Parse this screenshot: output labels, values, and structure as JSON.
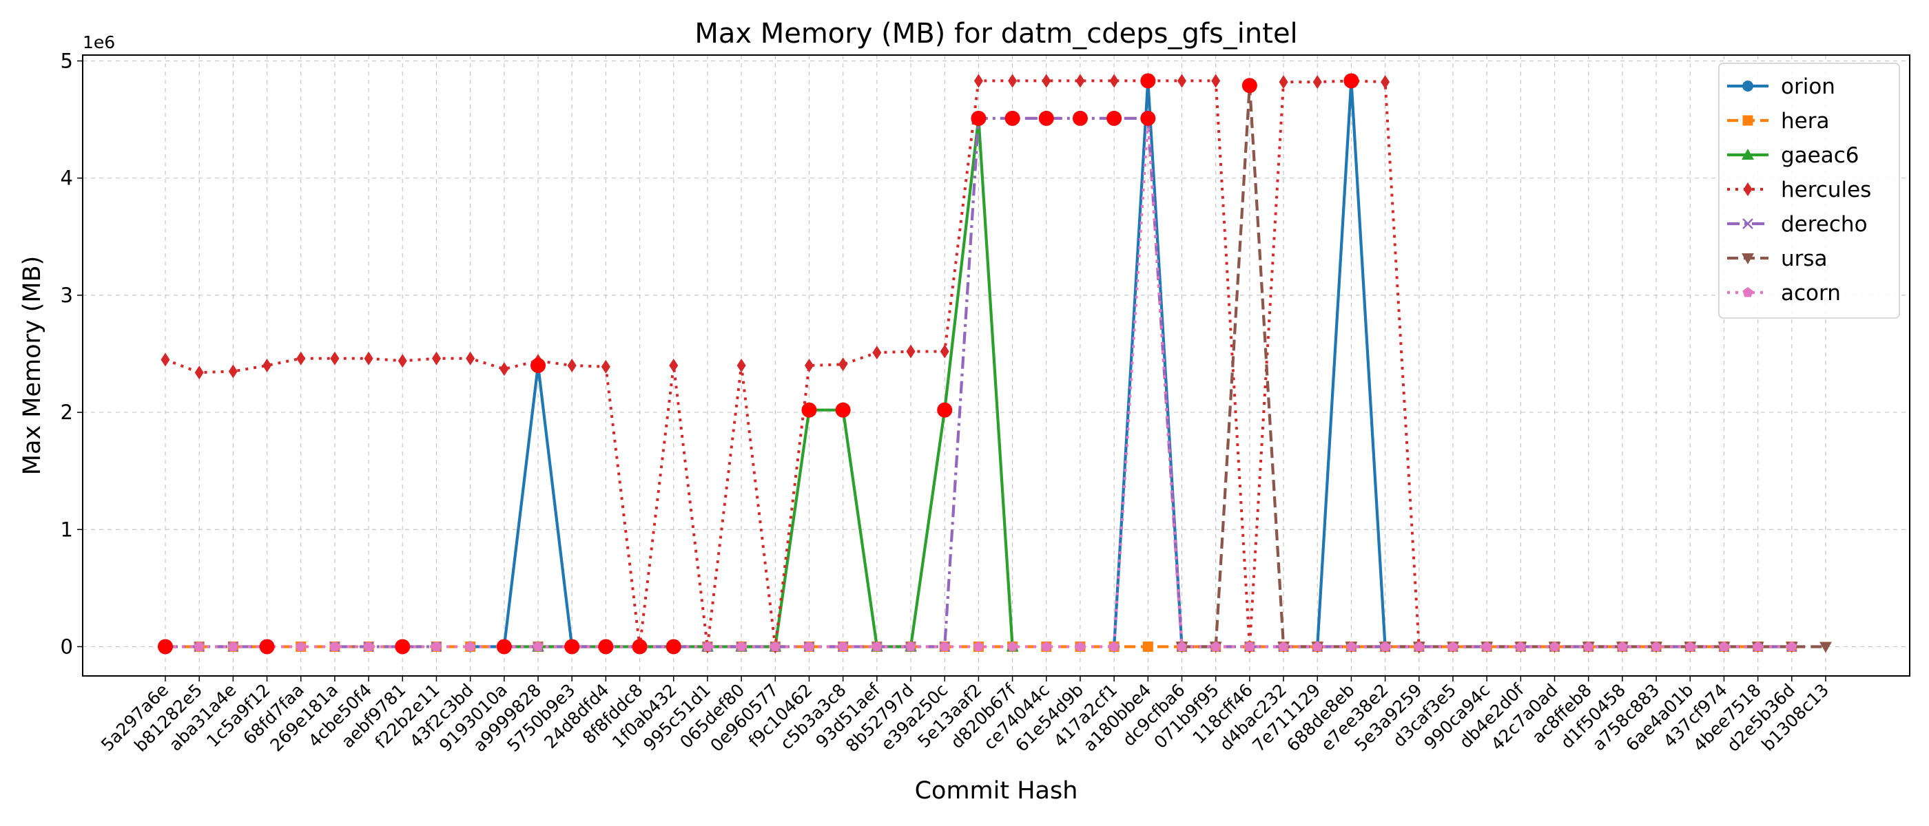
{
  "chart_data": {
    "type": "line",
    "title": "Max Memory (MB) for datm_cdeps_gfs_intel",
    "xlabel": "Commit Hash",
    "ylabel": "Max Memory (MB)",
    "y_offset_label": "1e6",
    "ylim": [
      -250000,
      5050000
    ],
    "yticks": [
      0,
      1,
      2,
      3,
      4,
      5
    ],
    "grid": true,
    "legend_position": "top-right",
    "categories": [
      "5a297a6e",
      "b81282e5",
      "aba31a4e",
      "1c5a9f12",
      "68fd7faa",
      "269e181a",
      "4cbe50f4",
      "aebf9781",
      "f22b2e11",
      "43f2c3bd",
      "9193010a",
      "a9999828",
      "5750b9e3",
      "24d8dfd4",
      "8f8fddc8",
      "1f0ab432",
      "995c51d1",
      "065def80",
      "0e960577",
      "f9c10462",
      "c5b3a3c8",
      "93d51aef",
      "8b52797d",
      "e39a250c",
      "5e13aaf2",
      "d820b67f",
      "ce74044c",
      "61e54d9b",
      "417a2cf1",
      "a180bbe4",
      "dc9cfba6",
      "071b9f95",
      "118cff46",
      "d4bac232",
      "7e711129",
      "688de8eb",
      "e7ee38e2",
      "5e3a9259",
      "d3caf3e5",
      "990ca94c",
      "db4e2d0f",
      "42c7a0ad",
      "ac8ffeb8",
      "d1f50458",
      "a758c883",
      "6ae4a01b",
      "437cf974",
      "4bee7518",
      "d2e5b36d",
      "b1308c13"
    ],
    "series": [
      {
        "name": "orion",
        "color": "#1f77b4",
        "marker": "circle",
        "dash": "solid",
        "values": [
          null,
          null,
          null,
          null,
          null,
          null,
          null,
          null,
          null,
          0,
          0,
          2400000,
          0,
          null,
          null,
          null,
          null,
          null,
          null,
          null,
          null,
          null,
          null,
          null,
          null,
          null,
          null,
          null,
          0,
          4830000,
          0,
          null,
          null,
          null,
          0,
          4830000,
          0,
          null,
          null,
          null,
          null,
          null,
          null,
          null,
          null,
          null,
          null,
          null,
          null,
          null
        ]
      },
      {
        "name": "hera",
        "color": "#ff7f0e",
        "marker": "square",
        "dash": "dashed",
        "values": [
          0,
          0,
          0,
          0,
          0,
          0,
          0,
          0,
          0,
          0,
          0,
          0,
          0,
          0,
          0,
          0,
          0,
          0,
          0,
          0,
          0,
          0,
          0,
          0,
          0,
          0,
          0,
          0,
          0,
          0,
          0,
          0,
          0,
          0,
          0,
          0,
          0,
          0,
          0,
          0,
          0,
          0,
          0,
          0,
          0,
          0,
          0,
          0,
          0,
          null
        ]
      },
      {
        "name": "gaeac6",
        "color": "#2ca02c",
        "marker": "triangle-up",
        "dash": "solid",
        "values": [
          null,
          null,
          null,
          null,
          null,
          null,
          null,
          null,
          null,
          null,
          0,
          0,
          0,
          0,
          0,
          0,
          0,
          0,
          0,
          2020000,
          2020000,
          0,
          0,
          2020000,
          4510000,
          0,
          null,
          null,
          null,
          null,
          null,
          null,
          null,
          null,
          null,
          null,
          null,
          null,
          null,
          null,
          null,
          null,
          null,
          null,
          null,
          null,
          null,
          null,
          null,
          null
        ]
      },
      {
        "name": "hercules",
        "color": "#d62728",
        "marker": "diamond",
        "dash": "dotted",
        "values": [
          2450000,
          2340000,
          2350000,
          2400000,
          2460000,
          2460000,
          2460000,
          2440000,
          2460000,
          2460000,
          2370000,
          2440000,
          2400000,
          2390000,
          0,
          2400000,
          0,
          2400000,
          0,
          2400000,
          2410000,
          2510000,
          2520000,
          2520000,
          4830000,
          4830000,
          4830000,
          4830000,
          4830000,
          4830000,
          4830000,
          4830000,
          0,
          4820000,
          4820000,
          4830000,
          4820000,
          0,
          null,
          null,
          null,
          null,
          null,
          null,
          null,
          null,
          null,
          null,
          null,
          null
        ]
      },
      {
        "name": "derecho",
        "color": "#9467bd",
        "marker": "x",
        "dash": "dashdot",
        "values": [
          0,
          0,
          0,
          0,
          null,
          0,
          0,
          0,
          0,
          null,
          0,
          0,
          0,
          0,
          0,
          0,
          0,
          0,
          0,
          0,
          0,
          0,
          0,
          0,
          4510000,
          4510000,
          4510000,
          4510000,
          4510000,
          4510000,
          0,
          0,
          0,
          0,
          0,
          0,
          0,
          0,
          0,
          0,
          0,
          0,
          0,
          0,
          0,
          0,
          0,
          0,
          0,
          null
        ]
      },
      {
        "name": "ursa",
        "color": "#8c564b",
        "marker": "triangle-down",
        "dash": "dashed",
        "values": [
          null,
          null,
          null,
          null,
          null,
          null,
          null,
          null,
          null,
          null,
          null,
          null,
          null,
          null,
          null,
          null,
          null,
          null,
          null,
          null,
          null,
          null,
          null,
          null,
          null,
          null,
          null,
          null,
          null,
          null,
          0,
          0,
          4790000,
          0,
          0,
          0,
          0,
          0,
          0,
          0,
          0,
          0,
          0,
          0,
          0,
          0,
          0,
          0,
          0,
          0
        ]
      },
      {
        "name": "acorn",
        "color": "#e377c2",
        "marker": "pentagon",
        "dash": "dotted",
        "values": [
          0,
          0,
          0,
          0,
          0,
          0,
          0,
          0,
          0,
          0,
          0,
          0,
          0,
          0,
          0,
          0,
          0,
          0,
          0,
          0,
          0,
          0,
          0,
          0,
          0,
          0,
          0,
          0,
          0,
          4510000,
          0,
          0,
          0,
          0,
          0,
          0,
          0,
          0,
          0,
          0,
          0,
          0,
          0,
          0,
          0,
          0,
          0,
          0,
          0,
          null
        ]
      }
    ],
    "highlights": {
      "color": "#ff0000",
      "points": [
        [
          0,
          0
        ],
        [
          3,
          0
        ],
        [
          7,
          0
        ],
        [
          10,
          0
        ],
        [
          11,
          2400000
        ],
        [
          12,
          0
        ],
        [
          13,
          0
        ],
        [
          14,
          0
        ],
        [
          15,
          0
        ],
        [
          19,
          2020000
        ],
        [
          20,
          2020000
        ],
        [
          23,
          2020000
        ],
        [
          24,
          4510000
        ],
        [
          25,
          4510000
        ],
        [
          26,
          4510000
        ],
        [
          27,
          4510000
        ],
        [
          28,
          4510000
        ],
        [
          29,
          4510000
        ],
        [
          29,
          4830000
        ],
        [
          32,
          4790000
        ],
        [
          35,
          4830000
        ]
      ]
    }
  }
}
